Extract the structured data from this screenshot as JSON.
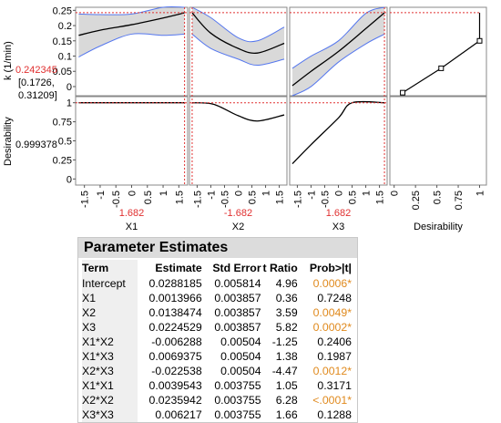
{
  "profiler": {
    "y1_label": "k (1/min)",
    "y1_value": "0.242345",
    "y1_ci_line1": "[0.1726,",
    "y1_ci_line2": "0.31209]",
    "y2_label": "Desirability",
    "y2_value": "0.999378",
    "y1_ticks": [
      "0.25",
      "0.2",
      "0.15",
      "0.1",
      "0.05",
      "0"
    ],
    "y2_ticks": [
      "1",
      "0.75",
      "0.5",
      "0.25",
      "0"
    ],
    "x_ticks": [
      "-1.5",
      "-1",
      "-0.5",
      "0",
      "0.5",
      "1",
      "1.5"
    ],
    "desir_x_ticks": [
      "0",
      "0.25",
      "0.5",
      "0.75",
      "1"
    ],
    "factors": [
      {
        "name": "X1",
        "current": "1.682"
      },
      {
        "name": "X2",
        "current": "-1.682"
      },
      {
        "name": "X3",
        "current": "1.682"
      }
    ],
    "desirability_axis_label": "Desirability",
    "colors": {
      "ref": "#e03030",
      "ci_line": "#5577ee",
      "ci_fill": "#d9d9d9",
      "curve": "#000000"
    }
  },
  "chart_data": [
    {
      "type": "line",
      "response": "k (1/min)",
      "factor": "X1",
      "x": [
        -1.682,
        -1,
        0,
        1,
        1.682
      ],
      "y": [
        0.168,
        0.185,
        0.203,
        0.225,
        0.242
      ],
      "ci_lower": [
        0.097,
        0.133,
        0.172,
        0.168,
        0.172
      ],
      "ci_upper": [
        0.238,
        0.236,
        0.238,
        0.276,
        0.312
      ]
    },
    {
      "type": "line",
      "response": "k (1/min)",
      "factor": "X2",
      "x": [
        -1.682,
        -1,
        0,
        0.7,
        1.682
      ],
      "y": [
        0.242,
        0.175,
        0.125,
        0.11,
        0.142
      ],
      "ci_lower": [
        0.172,
        0.125,
        0.09,
        0.07,
        0.09
      ],
      "ci_upper": [
        0.312,
        0.226,
        0.16,
        0.15,
        0.195
      ]
    },
    {
      "type": "line",
      "response": "k (1/min)",
      "factor": "X3",
      "x": [
        -1.682,
        -1,
        0,
        1,
        1.682
      ],
      "y": [
        0.003,
        0.05,
        0.115,
        0.19,
        0.242
      ],
      "ci_lower": [
        -0.06,
        0.0,
        0.08,
        0.14,
        0.172
      ],
      "ci_upper": [
        0.06,
        0.1,
        0.15,
        0.24,
        0.312
      ]
    },
    {
      "type": "line",
      "response": "Desirability",
      "factor": "X1",
      "x": [
        -1.682,
        1.682
      ],
      "y": [
        1.0,
        1.0
      ]
    },
    {
      "type": "line",
      "response": "Desirability",
      "factor": "X2",
      "x": [
        -1.682,
        -0.9,
        0,
        0.7,
        1.682
      ],
      "y": [
        1.0,
        0.98,
        0.83,
        0.76,
        0.84
      ]
    },
    {
      "type": "line",
      "response": "Desirability",
      "factor": "X3",
      "x": [
        -1.682,
        -1,
        0,
        0.5,
        1.682
      ],
      "y": [
        0.2,
        0.45,
        0.8,
        1.0,
        1.0
      ]
    },
    {
      "type": "line",
      "response": "k (1/min)",
      "factor": "Desirability function",
      "x": [
        0.1,
        0.55,
        1.0,
        1.0
      ],
      "y": [
        -0.02,
        0.06,
        0.15,
        0.242
      ],
      "markers": [
        [
          0.1,
          -0.02
        ],
        [
          0.55,
          0.06
        ],
        [
          1.0,
          0.15
        ]
      ]
    }
  ],
  "parameter_estimates": {
    "title": "Parameter Estimates",
    "headers": [
      "Term",
      "Estimate",
      "Std Error",
      "t Ratio",
      "Prob>|t|"
    ],
    "rows": [
      {
        "term": "Intercept",
        "estimate": "0.0288185",
        "std": "0.005814",
        "t": "4.96",
        "p": "0.0006*",
        "sig": true
      },
      {
        "term": "X1",
        "estimate": "0.0013966",
        "std": "0.003857",
        "t": "0.36",
        "p": "0.7248",
        "sig": false
      },
      {
        "term": "X2",
        "estimate": "0.0138474",
        "std": "0.003857",
        "t": "3.59",
        "p": "0.0049*",
        "sig": true
      },
      {
        "term": "X3",
        "estimate": "0.0224529",
        "std": "0.003857",
        "t": "5.82",
        "p": "0.0002*",
        "sig": true
      },
      {
        "term": "X1*X2",
        "estimate": "-0.006288",
        "std": "0.00504",
        "t": "-1.25",
        "p": "0.2406",
        "sig": false
      },
      {
        "term": "X1*X3",
        "estimate": "0.0069375",
        "std": "0.00504",
        "t": "1.38",
        "p": "0.1987",
        "sig": false
      },
      {
        "term": "X2*X3",
        "estimate": "-0.022538",
        "std": "0.00504",
        "t": "-4.47",
        "p": "0.0012*",
        "sig": true
      },
      {
        "term": "X1*X1",
        "estimate": "0.0039543",
        "std": "0.003755",
        "t": "1.05",
        "p": "0.3171",
        "sig": false
      },
      {
        "term": "X2*X2",
        "estimate": "0.0235942",
        "std": "0.003755",
        "t": "6.28",
        "p": "<.0001*",
        "sig": true
      },
      {
        "term": "X3*X3",
        "estimate": "0.006217",
        "std": "0.003755",
        "t": "1.66",
        "p": "0.1288",
        "sig": false
      }
    ]
  }
}
